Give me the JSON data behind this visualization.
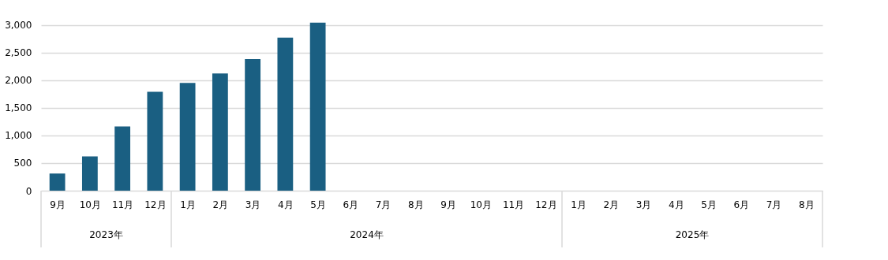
{
  "chart_data": {
    "type": "bar",
    "categories": [
      "9月",
      "10月",
      "11月",
      "12月",
      "1月",
      "2月",
      "3月",
      "4月",
      "5月",
      "6月",
      "7月",
      "8月",
      "9月",
      "10月",
      "11月",
      "12月",
      "1月",
      "2月",
      "3月",
      "4月",
      "5月",
      "6月",
      "7月",
      "8月"
    ],
    "series": [
      {
        "color": "#1a5f82",
        "values": [
          310,
          620,
          1160,
          1790,
          1950,
          2120,
          2380,
          2770,
          3040,
          null,
          null,
          null,
          null,
          null,
          null,
          null,
          null,
          null,
          null,
          null,
          null,
          null,
          null,
          null
        ]
      }
    ],
    "annotations": [
      "2023年",
      "2024年",
      "2025年"
    ],
    "ylim": [
      0,
      3050
    ],
    "yticks": [
      0,
      {
        "value": 500,
        "label": "500"
      },
      {
        "value": 1000,
        "label": "1,000"
      },
      {
        "value": 1500,
        "label": "1,500"
      },
      {
        "value": 2000,
        "label": "2,000"
      },
      {
        "value": 2500,
        "label": "2,500"
      },
      {
        "value": 3000,
        "label": "3,000"
      }
    ],
    "grid": "y"
  }
}
